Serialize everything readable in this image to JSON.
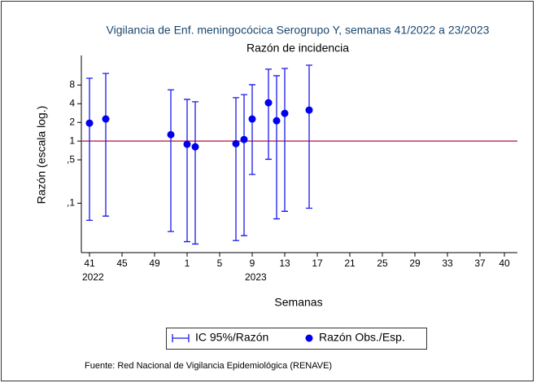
{
  "chart_data": {
    "type": "errorbar",
    "title": "Vigilancia de Enf. meningocócica Serogrupo Y, semanas 41/2022 a 23/2023",
    "subtitle": "Razón de incidencia",
    "x_label": "Semanas",
    "y_label": "Razón (escala log.)",
    "source": "Fuente: Red Nacional de Vigilancia Epidemiológica (RENAVE)",
    "log_scale_y": true,
    "x": [
      41,
      43,
      51,
      53,
      54,
      59,
      60,
      61,
      63,
      64,
      65,
      68
    ],
    "series": [
      {
        "name": "IC 95%/Razón",
        "color": "#1a1aee",
        "lower": [
          0.053,
          0.062,
          0.035,
          0.024,
          0.022,
          0.025,
          0.03,
          0.29,
          0.51,
          0.056,
          0.074,
          0.083
        ],
        "upper": [
          10.3,
          12.3,
          6.7,
          4.7,
          4.3,
          5.0,
          5.6,
          8.1,
          14.4,
          11.3,
          14.8,
          16.7
        ]
      },
      {
        "name": "Razón Obs./Esp.",
        "color": "#0000ee",
        "values": [
          1.95,
          2.27,
          1.27,
          0.89,
          0.81,
          0.91,
          1.06,
          2.27,
          4.15,
          2.13,
          2.8,
          3.16
        ]
      }
    ],
    "reference_line": {
      "value": 1,
      "color": "#c0395f"
    },
    "xlim": [
      40,
      93.6
    ],
    "ylim": [
      0.016,
      24
    ],
    "xticks": [
      {
        "value": 41,
        "label": "41"
      },
      {
        "value": 45,
        "label": "45"
      },
      {
        "value": 49,
        "label": "49"
      },
      {
        "value": 53,
        "label": "1"
      },
      {
        "value": 57,
        "label": "5"
      },
      {
        "value": 61,
        "label": "9"
      },
      {
        "value": 65,
        "label": "13"
      },
      {
        "value": 69,
        "label": "17"
      },
      {
        "value": 73,
        "label": "21"
      },
      {
        "value": 77,
        "label": "25"
      },
      {
        "value": 81,
        "label": "29"
      },
      {
        "value": 85,
        "label": "33"
      },
      {
        "value": 89,
        "label": "37"
      },
      {
        "value": 92,
        "label": "40"
      }
    ],
    "year_labels": [
      {
        "value": 41,
        "label": "2022"
      },
      {
        "value": 61,
        "label": "2023"
      }
    ],
    "yticks": [
      8,
      4,
      2,
      1,
      {
        "value": 0.5,
        "label": ",5"
      },
      {
        "value": 0.1,
        "label": ",1"
      }
    ],
    "grid": false
  }
}
